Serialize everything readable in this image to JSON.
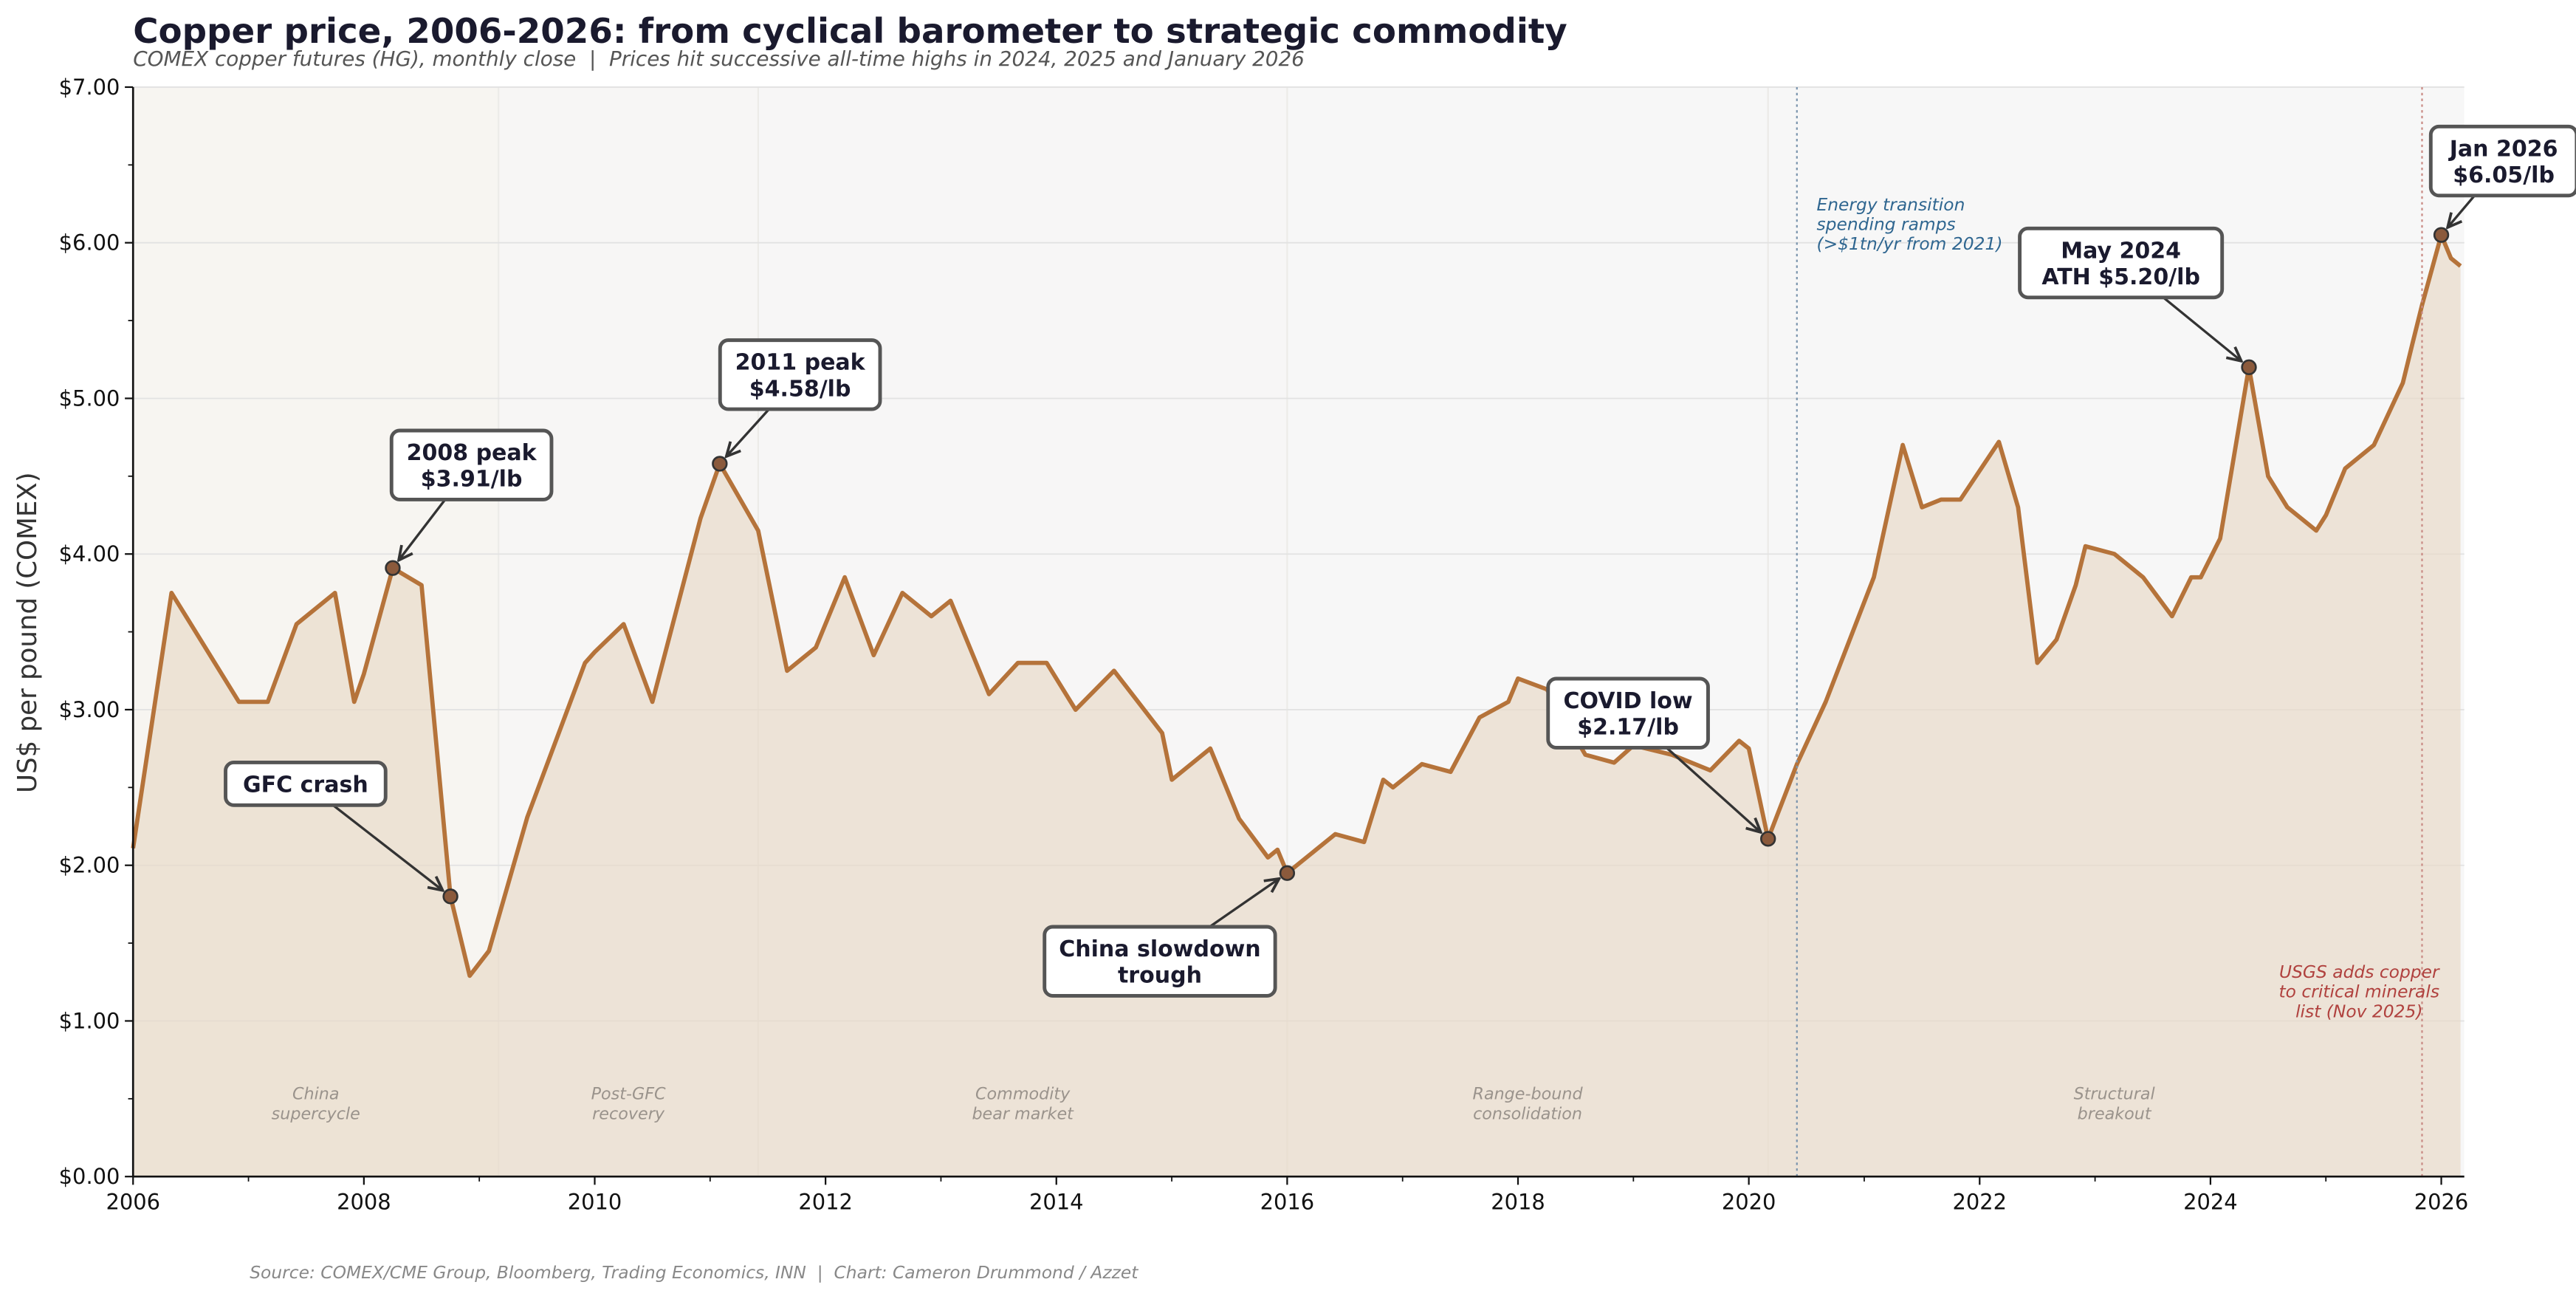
{
  "chart_data": {
    "type": "area",
    "title": "Copper price, 2006-2026: from cyclical barometer to strategic commodity",
    "subtitle": "COMEX copper futures (HG), monthly close  |  Prices hit successive all-time highs in 2024, 2025 and January 2026",
    "xlabel": "",
    "ylabel": "US$ per pound (COMEX)",
    "xlim": [
      "2006-01",
      "2026-03"
    ],
    "ylim": [
      0,
      7
    ],
    "x_ticks": [
      "2006",
      "2008",
      "2010",
      "2012",
      "2014",
      "2016",
      "2018",
      "2020",
      "2022",
      "2024",
      "2026"
    ],
    "y_ticks": [
      "$0.00",
      "$1.00",
      "$2.00",
      "$3.00",
      "$4.00",
      "$5.00",
      "$6.00",
      "$7.00"
    ],
    "grid": true,
    "colors": {
      "line": "#b5733a",
      "fill": "#e8d9c6",
      "marker": "#8b5a3c",
      "plot_bg": "#f7f7f7",
      "energy_line": "#7a94ad",
      "usgs_line": "#c98a84"
    },
    "series": [
      {
        "x": [
          "2006-01",
          "2006-05",
          "2006-12",
          "2007-03",
          "2007-06",
          "2007-10",
          "2007-12",
          "2008-01",
          "2008-04",
          "2008-07",
          "2008-10",
          "2008-12",
          "2009-02",
          "2009-06",
          "2009-12",
          "2010-01",
          "2010-04",
          "2010-07",
          "2010-12",
          "2011-02",
          "2011-06",
          "2011-09",
          "2011-12",
          "2012-03",
          "2012-06",
          "2012-09",
          "2012-12",
          "2013-02",
          "2013-06",
          "2013-09",
          "2013-12",
          "2014-03",
          "2014-07",
          "2014-12",
          "2015-01",
          "2015-05",
          "2015-08",
          "2015-11",
          "2015-12",
          "2016-01",
          "2016-06",
          "2016-09",
          "2016-11",
          "2016-12",
          "2017-03",
          "2017-06",
          "2017-09",
          "2017-12",
          "2018-01",
          "2018-04",
          "2018-08",
          "2018-11",
          "2019-01",
          "2019-05",
          "2019-09",
          "2019-12",
          "2020-01",
          "2020-03",
          "2020-06",
          "2020-09",
          "2021-02",
          "2021-05",
          "2021-07",
          "2021-09",
          "2021-11",
          "2022-03",
          "2022-05",
          "2022-07",
          "2022-09",
          "2022-11",
          "2022-12",
          "2023-03",
          "2023-06",
          "2023-09",
          "2023-11",
          "2023-12",
          "2024-02",
          "2024-05",
          "2024-07",
          "2024-09",
          "2024-12",
          "2025-01",
          "2025-03",
          "2025-06",
          "2025-09",
          "2025-10",
          "2025-11",
          "2026-01",
          "2026-02",
          "2026-03"
        ],
        "values": [
          2.11,
          3.75,
          3.05,
          3.05,
          3.55,
          3.75,
          3.05,
          3.23,
          3.91,
          3.8,
          1.8,
          1.29,
          1.45,
          2.31,
          3.3,
          3.37,
          3.55,
          3.05,
          4.23,
          4.58,
          4.15,
          3.25,
          3.4,
          3.85,
          3.35,
          3.75,
          3.6,
          3.7,
          3.1,
          3.3,
          3.3,
          3.0,
          3.25,
          2.85,
          2.55,
          2.75,
          2.3,
          2.05,
          2.1,
          1.95,
          2.2,
          2.15,
          2.55,
          2.5,
          2.65,
          2.6,
          2.95,
          3.05,
          3.2,
          3.13,
          2.71,
          2.66,
          2.77,
          2.71,
          2.61,
          2.8,
          2.75,
          2.17,
          2.65,
          3.05,
          3.85,
          4.7,
          4.3,
          4.35,
          4.35,
          4.72,
          4.3,
          3.3,
          3.45,
          3.8,
          4.05,
          4.0,
          3.85,
          3.6,
          3.85,
          3.85,
          4.1,
          5.2,
          4.5,
          4.3,
          4.15,
          4.25,
          4.55,
          4.7,
          5.1,
          5.35,
          5.6,
          6.05,
          5.9,
          5.85
        ]
      }
    ],
    "eras": [
      {
        "label": [
          "China",
          "supercycle"
        ],
        "start": "2006-01",
        "end": "2009-03"
      },
      {
        "label": [
          "Post-GFC",
          "recovery"
        ],
        "start": "2009-03",
        "end": "2011-06"
      },
      {
        "label": [
          "Commodity",
          "bear market"
        ],
        "start": "2011-06",
        "end": "2016-01"
      },
      {
        "label": [
          "Range-bound",
          "consolidation"
        ],
        "start": "2016-01",
        "end": "2020-03"
      },
      {
        "label": [
          "Structural",
          "breakout"
        ],
        "start": "2020-03",
        "end": "2026-03"
      }
    ],
    "event_lines": [
      {
        "date": "2020-06",
        "text": [
          "Energy transition",
          "spending ramps",
          "(>$1tn/yr from 2021)"
        ],
        "style": "blue"
      },
      {
        "date": "2025-11",
        "text": [
          "USGS adds copper",
          "to critical minerals",
          "list (Nov 2025)"
        ],
        "style": "red"
      }
    ],
    "annotations": [
      {
        "lines": [
          "2008 peak",
          "$3.91/lb"
        ],
        "x": "2008-04",
        "y": 3.91
      },
      {
        "lines": [
          "GFC crash"
        ],
        "x": "2008-10",
        "y": 1.8
      },
      {
        "lines": [
          "2011 peak",
          "$4.58/lb"
        ],
        "x": "2011-02",
        "y": 4.58
      },
      {
        "lines": [
          "China slowdown",
          "trough"
        ],
        "x": "2016-01",
        "y": 1.95
      },
      {
        "lines": [
          "COVID low",
          "$2.17/lb"
        ],
        "x": "2020-03",
        "y": 2.17
      },
      {
        "lines": [
          "May 2024",
          "ATH $5.20/lb"
        ],
        "x": "2024-05",
        "y": 5.2
      },
      {
        "lines": [
          "Jan 2026",
          "$6.05/lb"
        ],
        "x": "2026-01",
        "y": 6.05
      }
    ],
    "source": "Source: COMEX/CME Group, Bloomberg, Trading Economics, INN  |  Chart: Cameron Drummond / Azzet"
  }
}
